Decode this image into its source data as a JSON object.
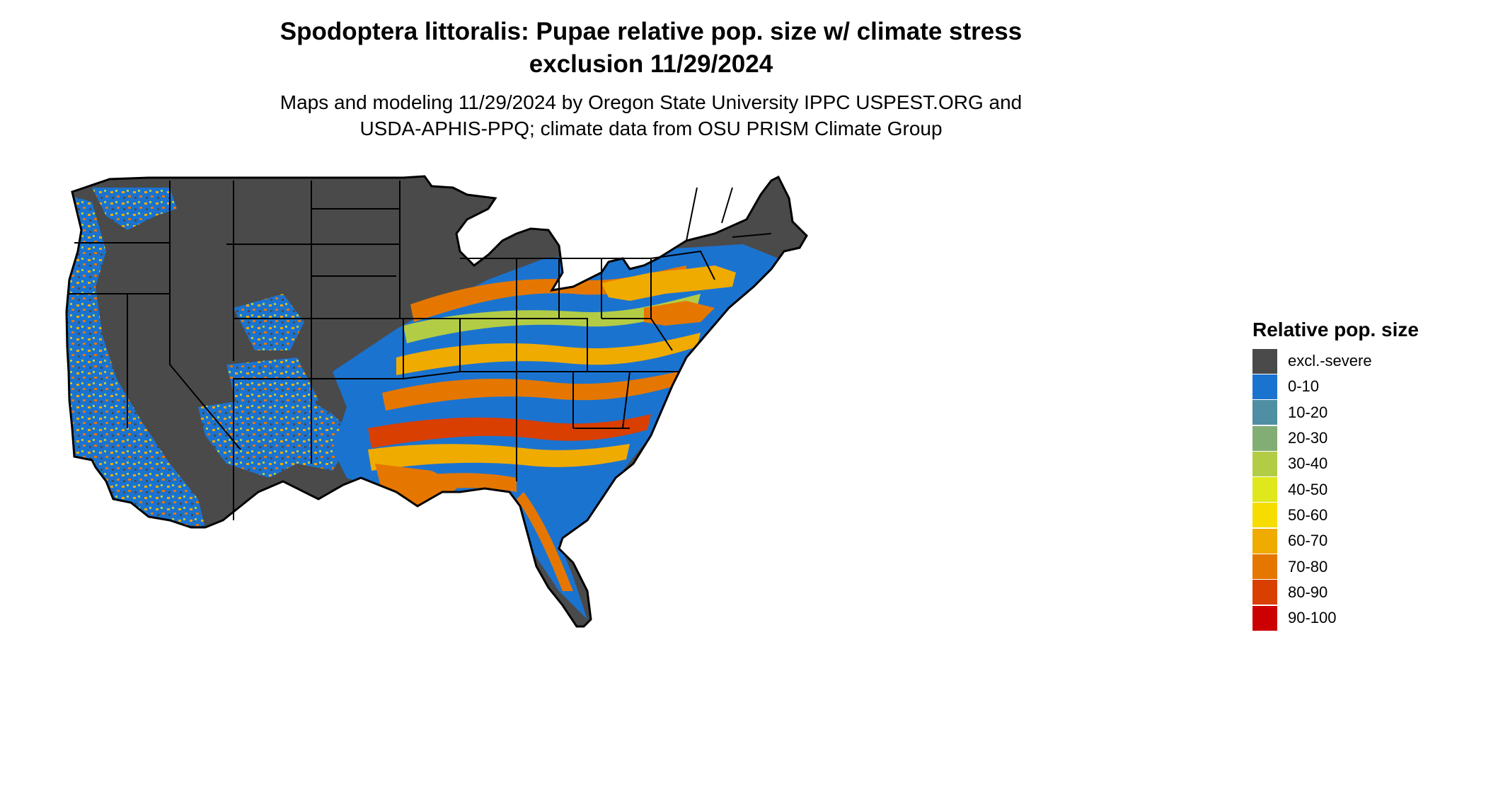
{
  "title": {
    "line1": "Spodoptera littoralis: Pupae relative pop. size w/ climate stress",
    "line2": "exclusion 11/29/2024"
  },
  "subtitle": {
    "line1": "Maps and modeling 11/29/2024 by Oregon State University IPPC USPEST.ORG and",
    "line2": "USDA-APHIS-PPQ; climate data from OSU PRISM Climate Group"
  },
  "legend": {
    "title": "Relative pop. size",
    "items": [
      {
        "label": "excl.-severe",
        "color": "#4a4a4a"
      },
      {
        "label": "0-10",
        "color": "#1b73d0"
      },
      {
        "label": "10-20",
        "color": "#4f8fa3"
      },
      {
        "label": "20-30",
        "color": "#82ad75"
      },
      {
        "label": "30-40",
        "color": "#b3cc45"
      },
      {
        "label": "40-50",
        "color": "#dfe81d"
      },
      {
        "label": "50-60",
        "color": "#f7dc00"
      },
      {
        "label": "60-70",
        "color": "#f0ab00"
      },
      {
        "label": "70-80",
        "color": "#e57700"
      },
      {
        "label": "80-90",
        "color": "#d93f00"
      },
      {
        "label": "90-100",
        "color": "#cc0000"
      }
    ]
  }
}
